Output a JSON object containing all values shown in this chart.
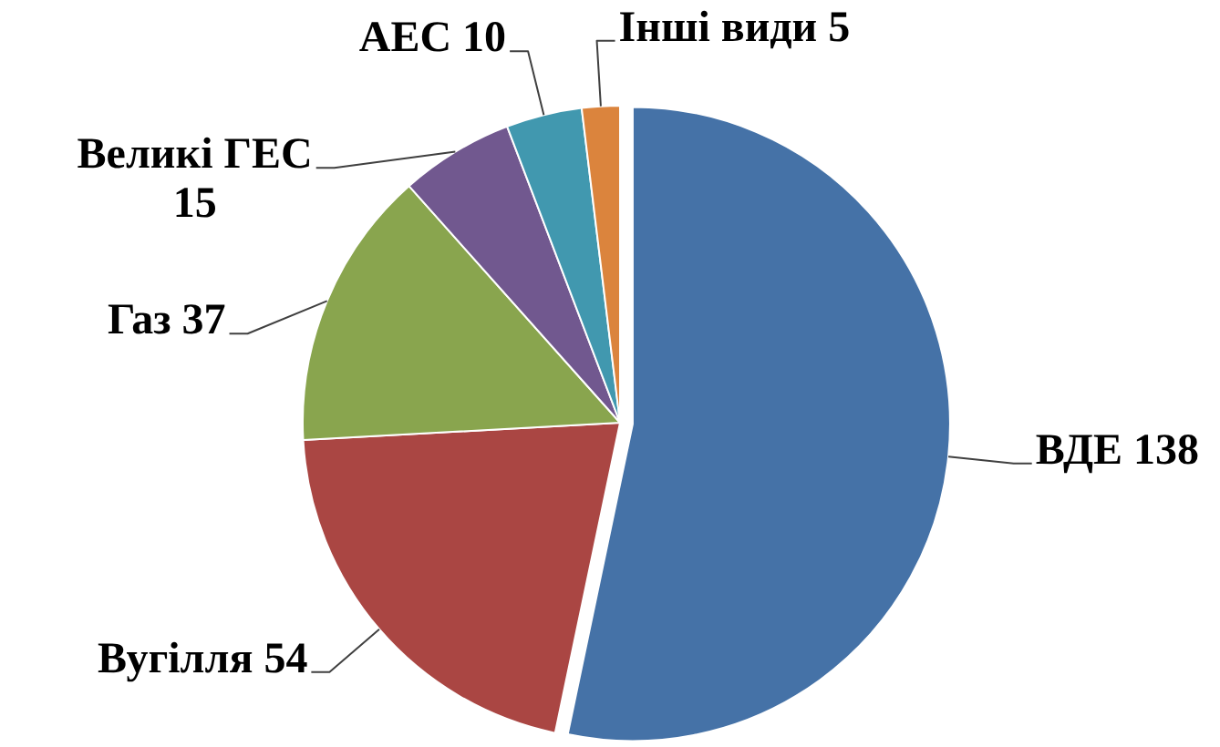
{
  "chart_data": {
    "type": "pie",
    "categories": [
      "ВДЕ",
      "Вугілля",
      "Газ",
      "Великі ГЕС",
      "АЕС",
      "Інші види"
    ],
    "values": [
      138,
      54,
      37,
      15,
      10,
      5
    ],
    "colors": [
      "#4572a7",
      "#aa4643",
      "#89a54e",
      "#71588f",
      "#4198af",
      "#db843d"
    ],
    "data_labels": true
  }
}
